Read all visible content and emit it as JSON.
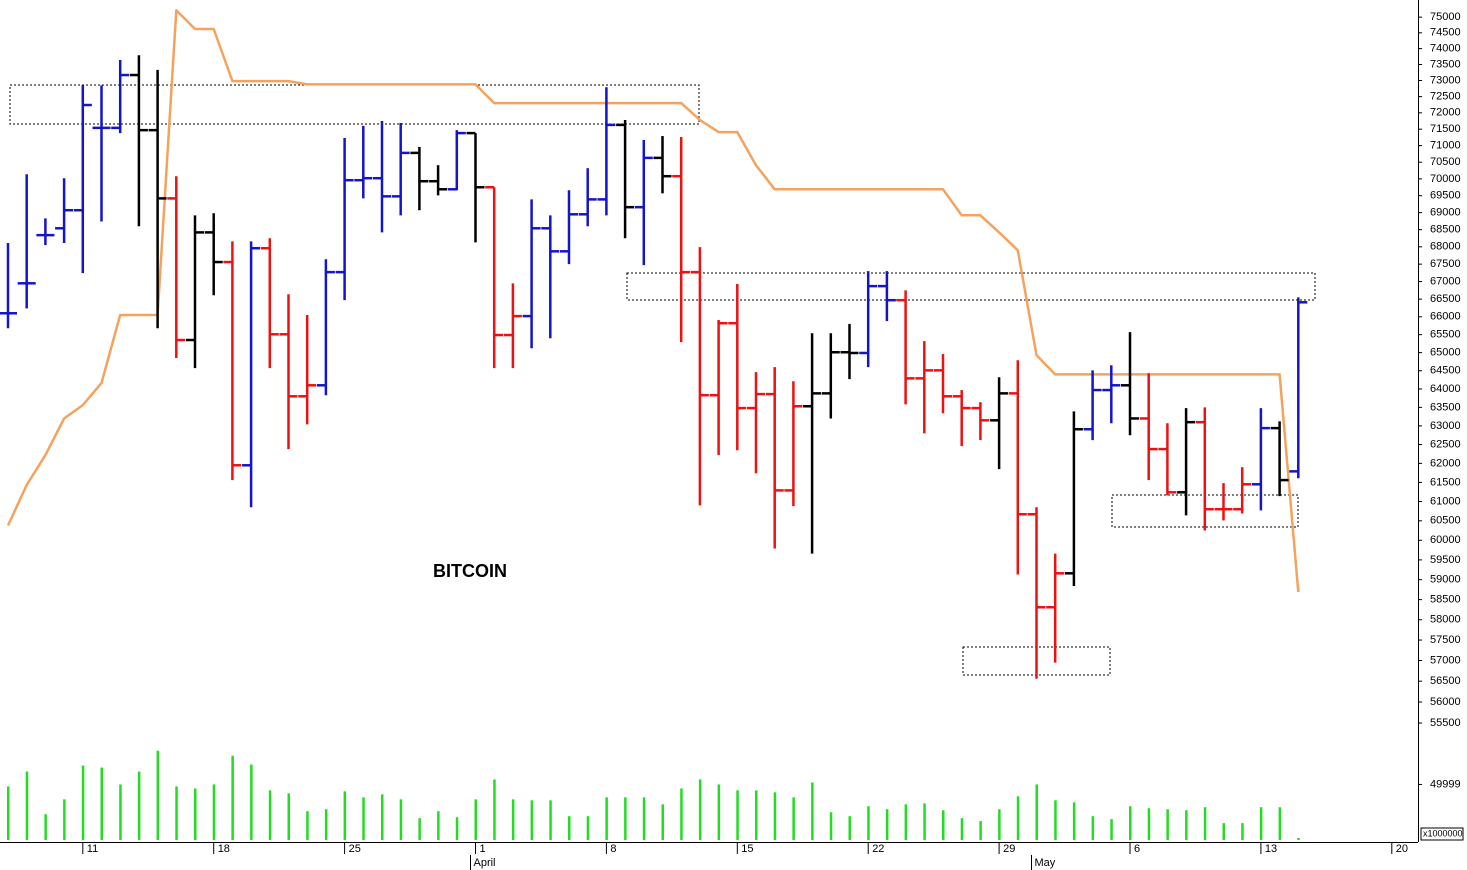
{
  "chart_data": [
    {
      "type": "ohlc",
      "annotation": "BITCOIN",
      "categories": [
        null,
        null,
        null,
        null,
        "11",
        null,
        null,
        null,
        null,
        null,
        null,
        "18",
        null,
        null,
        null,
        null,
        null,
        null,
        "25",
        null,
        null,
        null,
        null,
        null,
        null,
        "1",
        null,
        null,
        null,
        null,
        null,
        null,
        "8",
        null,
        null,
        null,
        null,
        null,
        null,
        "15",
        null,
        null,
        null,
        null,
        null,
        null,
        "22",
        null,
        null,
        null,
        null,
        null,
        null,
        "29",
        null,
        null,
        null,
        null,
        null,
        null,
        "6",
        null,
        null,
        null,
        null,
        null,
        null,
        "13",
        null,
        null,
        null,
        null,
        null,
        null,
        "20"
      ],
      "month_categories": [
        null,
        null,
        null,
        null,
        null,
        null,
        null,
        null,
        null,
        null,
        null,
        null,
        null,
        null,
        null,
        null,
        null,
        null,
        null,
        null,
        null,
        null,
        null,
        null,
        null,
        "April",
        null,
        null,
        null,
        null,
        null,
        null,
        null,
        null,
        null,
        null,
        null,
        null,
        null,
        null,
        null,
        null,
        null,
        null,
        null,
        null,
        null,
        null,
        null,
        null,
        null,
        null,
        null,
        null,
        null,
        "May",
        null,
        null,
        null,
        null,
        null,
        null,
        null,
        null,
        null,
        null,
        null,
        null,
        null,
        null,
        null,
        null,
        null,
        null,
        null
      ],
      "open": [
        66100,
        66950,
        68340,
        68540,
        69070,
        71540,
        71540,
        73170,
        71470,
        69420,
        65350,
        68420,
        67560,
        61950,
        67960,
        65510,
        63800,
        64100,
        67270,
        69960,
        70020,
        69480,
        70780,
        69930,
        69690,
        71380,
        69750,
        65490,
        66020,
        68540,
        67870,
        68950,
        69390,
        71630,
        69160,
        70630,
        70080,
        67270,
        63830,
        65820,
        63480,
        63860,
        61290,
        63530,
        63880,
        65010,
        64990,
        66870,
        66470,
        64290,
        64510,
        63800,
        63480,
        63150,
        63880,
        60670,
        58310,
        59160,
        62910,
        63970,
        64100,
        63200,
        62380,
        61240,
        63100,
        60800,
        60800,
        61450,
        62940,
        61790,
        null,
        null,
        null,
        null,
        null
      ],
      "high": [
        68110,
        70140,
        68830,
        70020,
        72850,
        72850,
        73640,
        73790,
        73330,
        70080,
        68920,
        68980,
        68160,
        68160,
        68250,
        66640,
        66050,
        67640,
        71230,
        71600,
        71750,
        71690,
        70960,
        70410,
        71470,
        71380,
        69750,
        66950,
        69390,
        68920,
        69660,
        70320,
        72790,
        71780,
        71170,
        71290,
        71260,
        67990,
        65910,
        66930,
        64460,
        64600,
        64210,
        65540,
        65540,
        65800,
        67300,
        67300,
        66750,
        65320,
        64960,
        63970,
        63640,
        64320,
        64790,
        60850,
        59660,
        63390,
        64510,
        64650,
        65570,
        64430,
        63070,
        63480,
        63500,
        61480,
        61900,
        63480,
        63120,
        66550,
        null,
        null,
        null,
        null,
        null
      ],
      "low": [
        65680,
        66240,
        68050,
        68110,
        67240,
        68740,
        71380,
        68600,
        65680,
        64850,
        64570,
        66610,
        61560,
        60850,
        64570,
        62380,
        63040,
        63830,
        66470,
        69420,
        68420,
        68920,
        69070,
        69510,
        69660,
        68130,
        64570,
        64570,
        65120,
        65400,
        67500,
        68600,
        68920,
        68250,
        67470,
        69570,
        65290,
        60900,
        62220,
        62350,
        61740,
        59790,
        60880,
        59660,
        63200,
        64270,
        64600,
        65880,
        63580,
        62800,
        63340,
        62460,
        62620,
        61850,
        59130,
        56560,
        56950,
        58840,
        62620,
        63070,
        62750,
        61560,
        61160,
        60640,
        60250,
        60510,
        60690,
        60770,
        61140,
        61610,
        null,
        null,
        null,
        null,
        null
      ],
      "close": [
        66100,
        66950,
        68340,
        69070,
        72240,
        71540,
        73170,
        71470,
        69420,
        65350,
        68420,
        67560,
        61950,
        67960,
        65510,
        63800,
        64100,
        67270,
        69960,
        70020,
        69480,
        70780,
        69930,
        69690,
        71380,
        69750,
        65490,
        66020,
        68540,
        67870,
        68950,
        69390,
        71630,
        69160,
        70630,
        70080,
        67270,
        63830,
        65820,
        63480,
        63860,
        61290,
        63530,
        63880,
        65010,
        64990,
        66870,
        66470,
        64290,
        64510,
        63800,
        63480,
        63150,
        63880,
        60670,
        58310,
        59160,
        62910,
        63970,
        64100,
        63200,
        62380,
        61240,
        63100,
        60800,
        60800,
        61450,
        62940,
        61560,
        66410,
        null,
        null,
        null,
        null,
        null
      ],
      "colors": [
        "#1414c8",
        "#1414c8",
        "#1414c8",
        "#1414c8",
        "#1414c8",
        "#1414c8",
        "#1414c8",
        "#000000",
        "#000000",
        "#ee1111",
        "#000000",
        "#000000",
        "#ee1111",
        "#1414c8",
        "#ee1111",
        "#ee1111",
        "#ee1111",
        "#1414c8",
        "#1414c8",
        "#1414c8",
        "#1414c8",
        "#1414c8",
        "#000000",
        "#000000",
        "#1414c8",
        "#000000",
        "#ee1111",
        "#ee1111",
        "#1414c8",
        "#1414c8",
        "#1414c8",
        "#1414c8",
        "#1414c8",
        "#000000",
        "#1414c8",
        "#000000",
        "#ee1111",
        "#ee1111",
        "#ee1111",
        "#ee1111",
        "#ee1111",
        "#ee1111",
        "#ee1111",
        "#000000",
        "#000000",
        "#000000",
        "#1414c8",
        "#1414c8",
        "#ee1111",
        "#ee1111",
        "#ee1111",
        "#ee1111",
        "#ee1111",
        "#000000",
        "#ee1111",
        "#ee1111",
        "#ee1111",
        "#000000",
        "#1414c8",
        "#1414c8",
        "#000000",
        "#ee1111",
        "#ee1111",
        "#000000",
        "#ee1111",
        "#ee1111",
        "#ee1111",
        "#1414c8",
        "#000000",
        "#1414c8",
        null,
        null,
        null,
        null,
        null
      ],
      "overlays": [
        {
          "type": "line",
          "color": "#f5a25d",
          "values": [
            60380,
            61430,
            62220,
            63200,
            63560,
            64160,
            66050,
            66050,
            66050,
            75220,
            74620,
            74620,
            72980,
            72980,
            72980,
            72980,
            72880,
            72880,
            72880,
            72880,
            72880,
            72880,
            72880,
            72880,
            72880,
            72880,
            72300,
            72300,
            72300,
            72300,
            72300,
            72300,
            72300,
            72300,
            72300,
            72300,
            72300,
            71780,
            71410,
            71410,
            70410,
            69690,
            69690,
            69690,
            69690,
            69690,
            69690,
            69690,
            69690,
            69690,
            69690,
            68920,
            68920,
            68420,
            67900,
            64930,
            64400,
            64400,
            64400,
            64400,
            64400,
            64400,
            64400,
            64400,
            64400,
            64400,
            64400,
            64400,
            64400,
            58690,
            null,
            null,
            null,
            null,
            null
          ]
        }
      ],
      "log_scale": true,
      "ylim": [
        55100,
        75550
      ],
      "yticks": [
        55500,
        56000,
        56500,
        57000,
        57500,
        58000,
        58500,
        59000,
        59500,
        60000,
        60500,
        61000,
        61500,
        62000,
        62500,
        63000,
        63500,
        64000,
        64500,
        65000,
        65500,
        66000,
        66500,
        67000,
        67500,
        68000,
        68500,
        69000,
        69500,
        70000,
        70500,
        71000,
        71500,
        72000,
        72500,
        73000,
        73500,
        74000,
        74500,
        75000
      ]
    },
    {
      "type": "bar",
      "color": "#22dd22",
      "values": [
        48200,
        61600,
        23200,
        36600,
        67000,
        65200,
        50000,
        61600,
        80400,
        48200,
        46400,
        50000,
        75900,
        67900,
        44700,
        42000,
        25900,
        27700,
        43800,
        38400,
        41100,
        36600,
        19600,
        25900,
        20500,
        36600,
        54500,
        36600,
        35700,
        35700,
        21400,
        21400,
        38400,
        38400,
        38400,
        32100,
        46400,
        54500,
        50000,
        44700,
        44700,
        42900,
        38400,
        51800,
        25000,
        21400,
        30400,
        27700,
        32100,
        33000,
        26800,
        19600,
        17000,
        27700,
        39300,
        50000,
        35700,
        33900,
        21400,
        18800,
        30400,
        28600,
        27700,
        26800,
        29500,
        15200,
        15200,
        29500,
        29500,
        1800,
        null,
        null,
        null,
        null,
        null
      ],
      "ylim": [
        0,
        90000
      ],
      "yticks": [
        49999
      ],
      "unit_label": "x1000000"
    }
  ]
}
